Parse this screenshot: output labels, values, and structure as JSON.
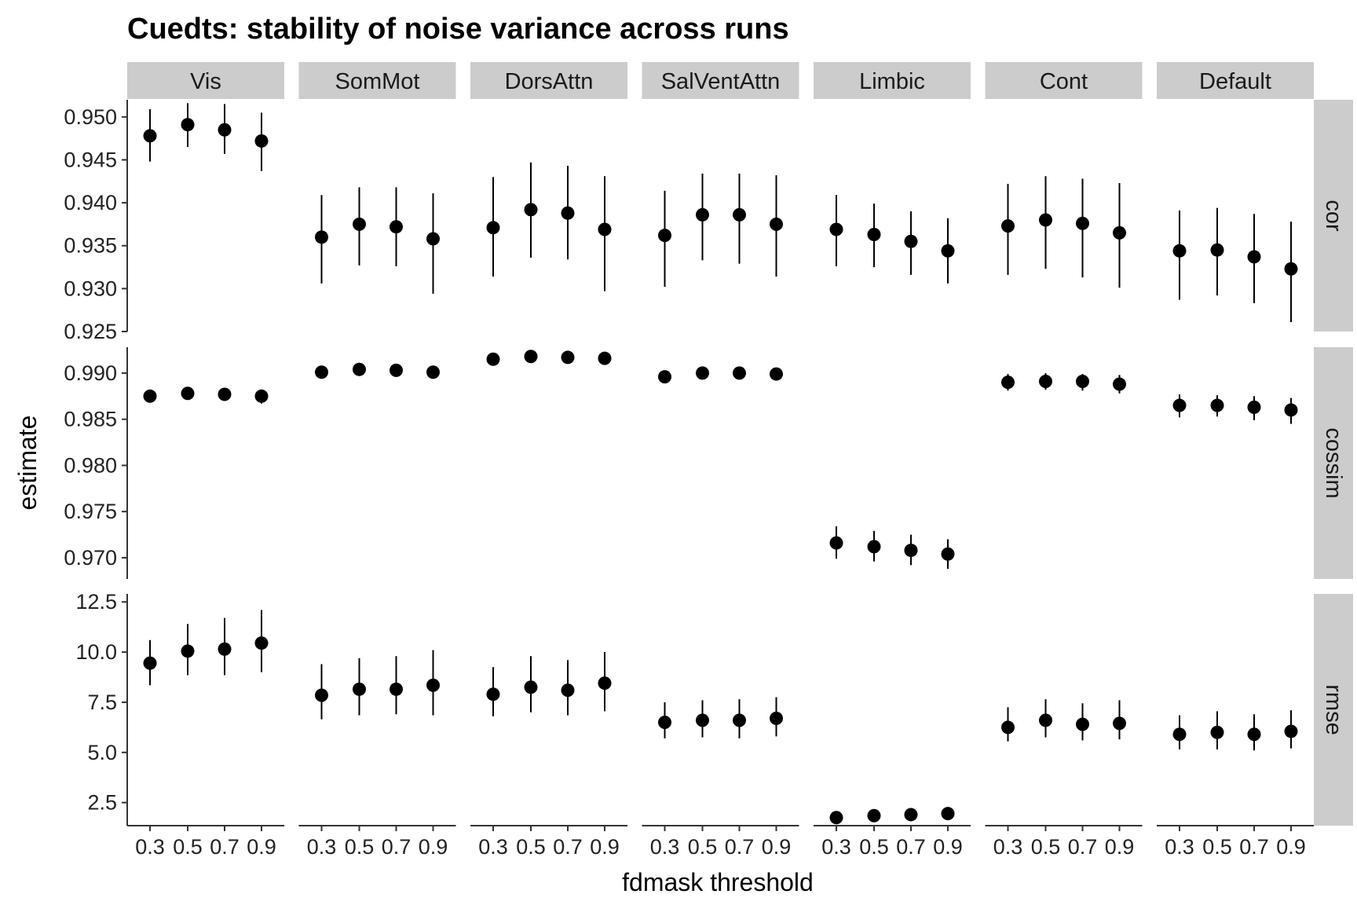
{
  "chart_data": {
    "type": "scatter",
    "variant": "pointrange-facet-grid",
    "title": "Cuedts: stability of noise variance across runs",
    "xlabel": "fdmask threshold",
    "ylabel": "estimate",
    "x": [
      "0.3",
      "0.5",
      "0.7",
      "0.9"
    ],
    "x_tick_labels": [
      "0.3",
      "0.5",
      "0.7",
      "0.9"
    ],
    "columns": [
      "Vis",
      "SomMot",
      "DorsAttn",
      "SalVentAttn",
      "Limbic",
      "Cont",
      "Default"
    ],
    "rows": [
      {
        "name": "cor",
        "ylim": [
          0.925,
          0.952
        ],
        "ticks": [
          0.925,
          0.93,
          0.935,
          0.94,
          0.945,
          0.95
        ],
        "tick_labels": [
          "0.925",
          "0.930",
          "0.935",
          "0.940",
          "0.945",
          "0.950"
        ],
        "series": {
          "Vis": {
            "values": [
              0.9478,
              0.9491,
              0.9485,
              0.9472
            ],
            "lower": [
              0.9448,
              0.9465,
              0.9457,
              0.9437
            ],
            "upper": [
              0.9509,
              0.9516,
              0.9515,
              0.9505
            ]
          },
          "SomMot": {
            "values": [
              0.936,
              0.9375,
              0.9372,
              0.9358
            ],
            "lower": [
              0.9306,
              0.9327,
              0.9326,
              0.9294
            ],
            "upper": [
              0.9409,
              0.9418,
              0.9418,
              0.9411
            ]
          },
          "DorsAttn": {
            "values": [
              0.9371,
              0.9392,
              0.9388,
              0.9369
            ],
            "lower": [
              0.9314,
              0.9336,
              0.9334,
              0.9297
            ],
            "upper": [
              0.943,
              0.9447,
              0.9443,
              0.9431
            ]
          },
          "SalVentAttn": {
            "values": [
              0.9362,
              0.9386,
              0.9386,
              0.9375
            ],
            "lower": [
              0.9302,
              0.9333,
              0.9329,
              0.9314
            ],
            "upper": [
              0.9414,
              0.9434,
              0.9434,
              0.9432
            ]
          },
          "Limbic": {
            "values": [
              0.9369,
              0.9363,
              0.9355,
              0.9344
            ],
            "lower": [
              0.9326,
              0.9325,
              0.9316,
              0.9306
            ],
            "upper": [
              0.9409,
              0.9399,
              0.939,
              0.9382
            ]
          },
          "Cont": {
            "values": [
              0.9373,
              0.938,
              0.9376,
              0.9365
            ],
            "lower": [
              0.9316,
              0.9323,
              0.9313,
              0.9301
            ],
            "upper": [
              0.9422,
              0.9431,
              0.9428,
              0.9423
            ]
          },
          "Default": {
            "values": [
              0.9344,
              0.9345,
              0.9337,
              0.9323
            ],
            "lower": [
              0.9287,
              0.9292,
              0.9283,
              0.9261
            ],
            "upper": [
              0.9391,
              0.9394,
              0.9387,
              0.9378
            ]
          }
        }
      },
      {
        "name": "cossim",
        "ylim": [
          0.9677,
          0.9928
        ],
        "ticks": [
          0.97,
          0.975,
          0.98,
          0.985,
          0.99
        ],
        "tick_labels": [
          "0.970",
          "0.975",
          "0.980",
          "0.985",
          "0.990"
        ],
        "series": {
          "Vis": {
            "values": [
              0.9875,
              0.9878,
              0.9877,
              0.9875
            ],
            "lower": [
              0.9869,
              0.9872,
              0.9871,
              0.9867
            ],
            "upper": [
              0.988,
              0.9883,
              0.9882,
              0.988
            ]
          },
          "SomMot": {
            "values": [
              0.9901,
              0.9904,
              0.9903,
              0.9901
            ],
            "lower": [
              0.9895,
              0.9898,
              0.9898,
              0.9894
            ],
            "upper": [
              0.9906,
              0.9909,
              0.9909,
              0.9907
            ]
          },
          "DorsAttn": {
            "values": [
              0.9915,
              0.9918,
              0.9917,
              0.9916
            ],
            "lower": [
              0.9909,
              0.9913,
              0.9912,
              0.9909
            ],
            "upper": [
              0.992,
              0.9923,
              0.9922,
              0.9921
            ]
          },
          "SalVentAttn": {
            "values": [
              0.9896,
              0.99,
              0.99,
              0.9899
            ],
            "lower": [
              0.9889,
              0.9894,
              0.9894,
              0.9892
            ],
            "upper": [
              0.9902,
              0.9906,
              0.9906,
              0.9905
            ]
          },
          "Limbic": {
            "values": [
              0.9716,
              0.9712,
              0.9708,
              0.9704
            ],
            "lower": [
              0.9699,
              0.9696,
              0.9692,
              0.9688
            ],
            "upper": [
              0.9734,
              0.9729,
              0.9725,
              0.972
            ]
          },
          "Cont": {
            "values": [
              0.989,
              0.9891,
              0.9891,
              0.9888
            ],
            "lower": [
              0.9881,
              0.9882,
              0.9881,
              0.9878
            ],
            "upper": [
              0.9899,
              0.99,
              0.9899,
              0.9898
            ]
          },
          "Default": {
            "values": [
              0.9865,
              0.9865,
              0.9863,
              0.986
            ],
            "lower": [
              0.9852,
              0.9853,
              0.9849,
              0.9845
            ],
            "upper": [
              0.9877,
              0.9876,
              0.9875,
              0.9873
            ]
          }
        }
      },
      {
        "name": "rmse",
        "ylim": [
          1.35,
          12.9
        ],
        "ticks": [
          2.5,
          5.0,
          7.5,
          10.0,
          12.5
        ],
        "tick_labels": [
          "2.5",
          "5.0",
          "7.5",
          "10.0",
          "12.5"
        ],
        "series": {
          "Vis": {
            "values": [
              9.45,
              10.05,
              10.15,
              10.45
            ],
            "lower": [
              8.35,
              8.85,
              8.85,
              9.0
            ],
            "upper": [
              10.6,
              11.4,
              11.7,
              12.1
            ]
          },
          "SomMot": {
            "values": [
              7.85,
              8.15,
              8.15,
              8.35
            ],
            "lower": [
              6.65,
              6.85,
              6.9,
              6.85
            ],
            "upper": [
              9.4,
              9.7,
              9.8,
              10.1
            ]
          },
          "DorsAttn": {
            "values": [
              7.9,
              8.25,
              8.1,
              8.45
            ],
            "lower": [
              6.8,
              7.0,
              6.85,
              7.05
            ],
            "upper": [
              9.25,
              9.8,
              9.6,
              10.0
            ]
          },
          "SalVentAttn": {
            "values": [
              6.5,
              6.6,
              6.6,
              6.7
            ],
            "lower": [
              5.7,
              5.75,
              5.7,
              5.8
            ],
            "upper": [
              7.5,
              7.6,
              7.65,
              7.75
            ]
          },
          "Limbic": {
            "values": [
              1.75,
              1.85,
              1.9,
              1.95
            ],
            "lower": [
              1.55,
              1.65,
              1.7,
              1.75
            ],
            "upper": [
              1.95,
              2.05,
              2.1,
              2.15
            ]
          },
          "Cont": {
            "values": [
              6.25,
              6.6,
              6.4,
              6.45
            ],
            "lower": [
              5.55,
              5.75,
              5.6,
              5.65
            ],
            "upper": [
              7.25,
              7.65,
              7.45,
              7.6
            ]
          },
          "Default": {
            "values": [
              5.9,
              6.0,
              5.9,
              6.05
            ],
            "lower": [
              5.15,
              5.15,
              5.1,
              5.2
            ],
            "upper": [
              6.85,
              7.05,
              6.9,
              7.1
            ]
          }
        }
      }
    ],
    "legend": "none",
    "grid": false,
    "colors": {
      "point": "#000000",
      "strip_fill": "#cccccc",
      "strip_text": "#1a1a1a",
      "axis": "#333333",
      "background": "#ffffff"
    }
  }
}
